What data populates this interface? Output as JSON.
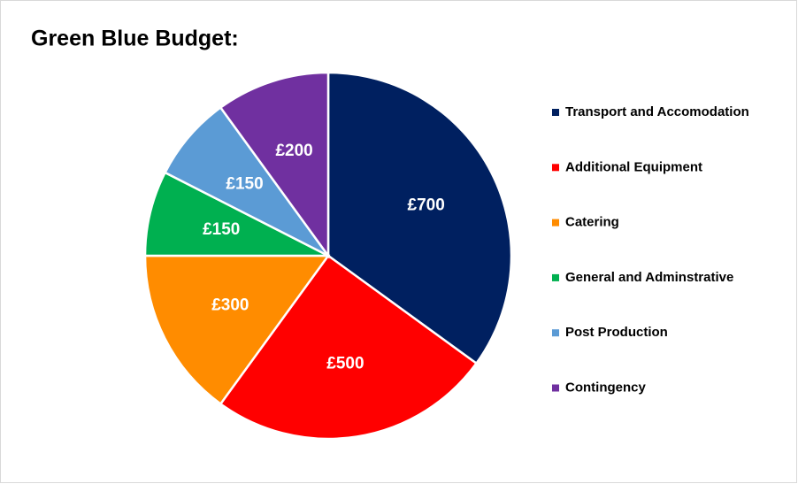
{
  "chart_data": {
    "type": "pie",
    "title": "Green Blue Budget:",
    "categories": [
      "Transport and Accomodation",
      "Additional Equipment",
      "Catering",
      "General and Adminstrative",
      "Post Production",
      "Contingency"
    ],
    "values": [
      700,
      500,
      300,
      150,
      150,
      200
    ],
    "value_labels": [
      "£700",
      "£500",
      "£300",
      "£150",
      "£150",
      "£200"
    ],
    "colors": [
      "#002060",
      "#ff0000",
      "#ff8c00",
      "#00b050",
      "#5b9bd5",
      "#7030a0"
    ],
    "legend": "right"
  }
}
